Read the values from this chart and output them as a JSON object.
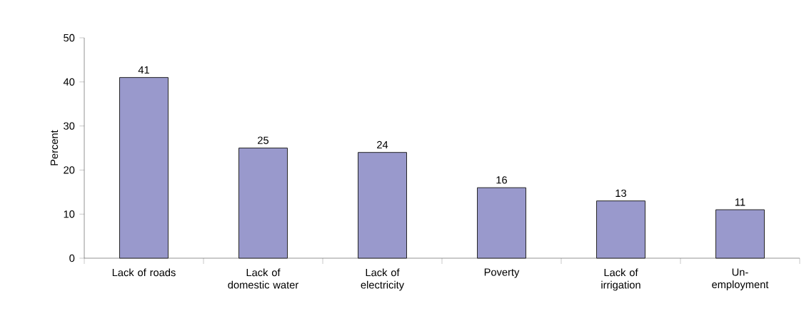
{
  "chart_data": {
    "type": "bar",
    "categories": [
      "Lack of roads",
      "Lack of domestic water",
      "Lack of electricity",
      "Poverty",
      "Lack of irrigation",
      "Un-employment"
    ],
    "values": [
      41,
      25,
      24,
      16,
      13,
      11
    ],
    "color": "#9999cc",
    "ylabel": "Percent",
    "ylim": [
      0,
      50
    ],
    "yticks": [
      0,
      10,
      20,
      30,
      40,
      50
    ],
    "data_labels": true
  }
}
